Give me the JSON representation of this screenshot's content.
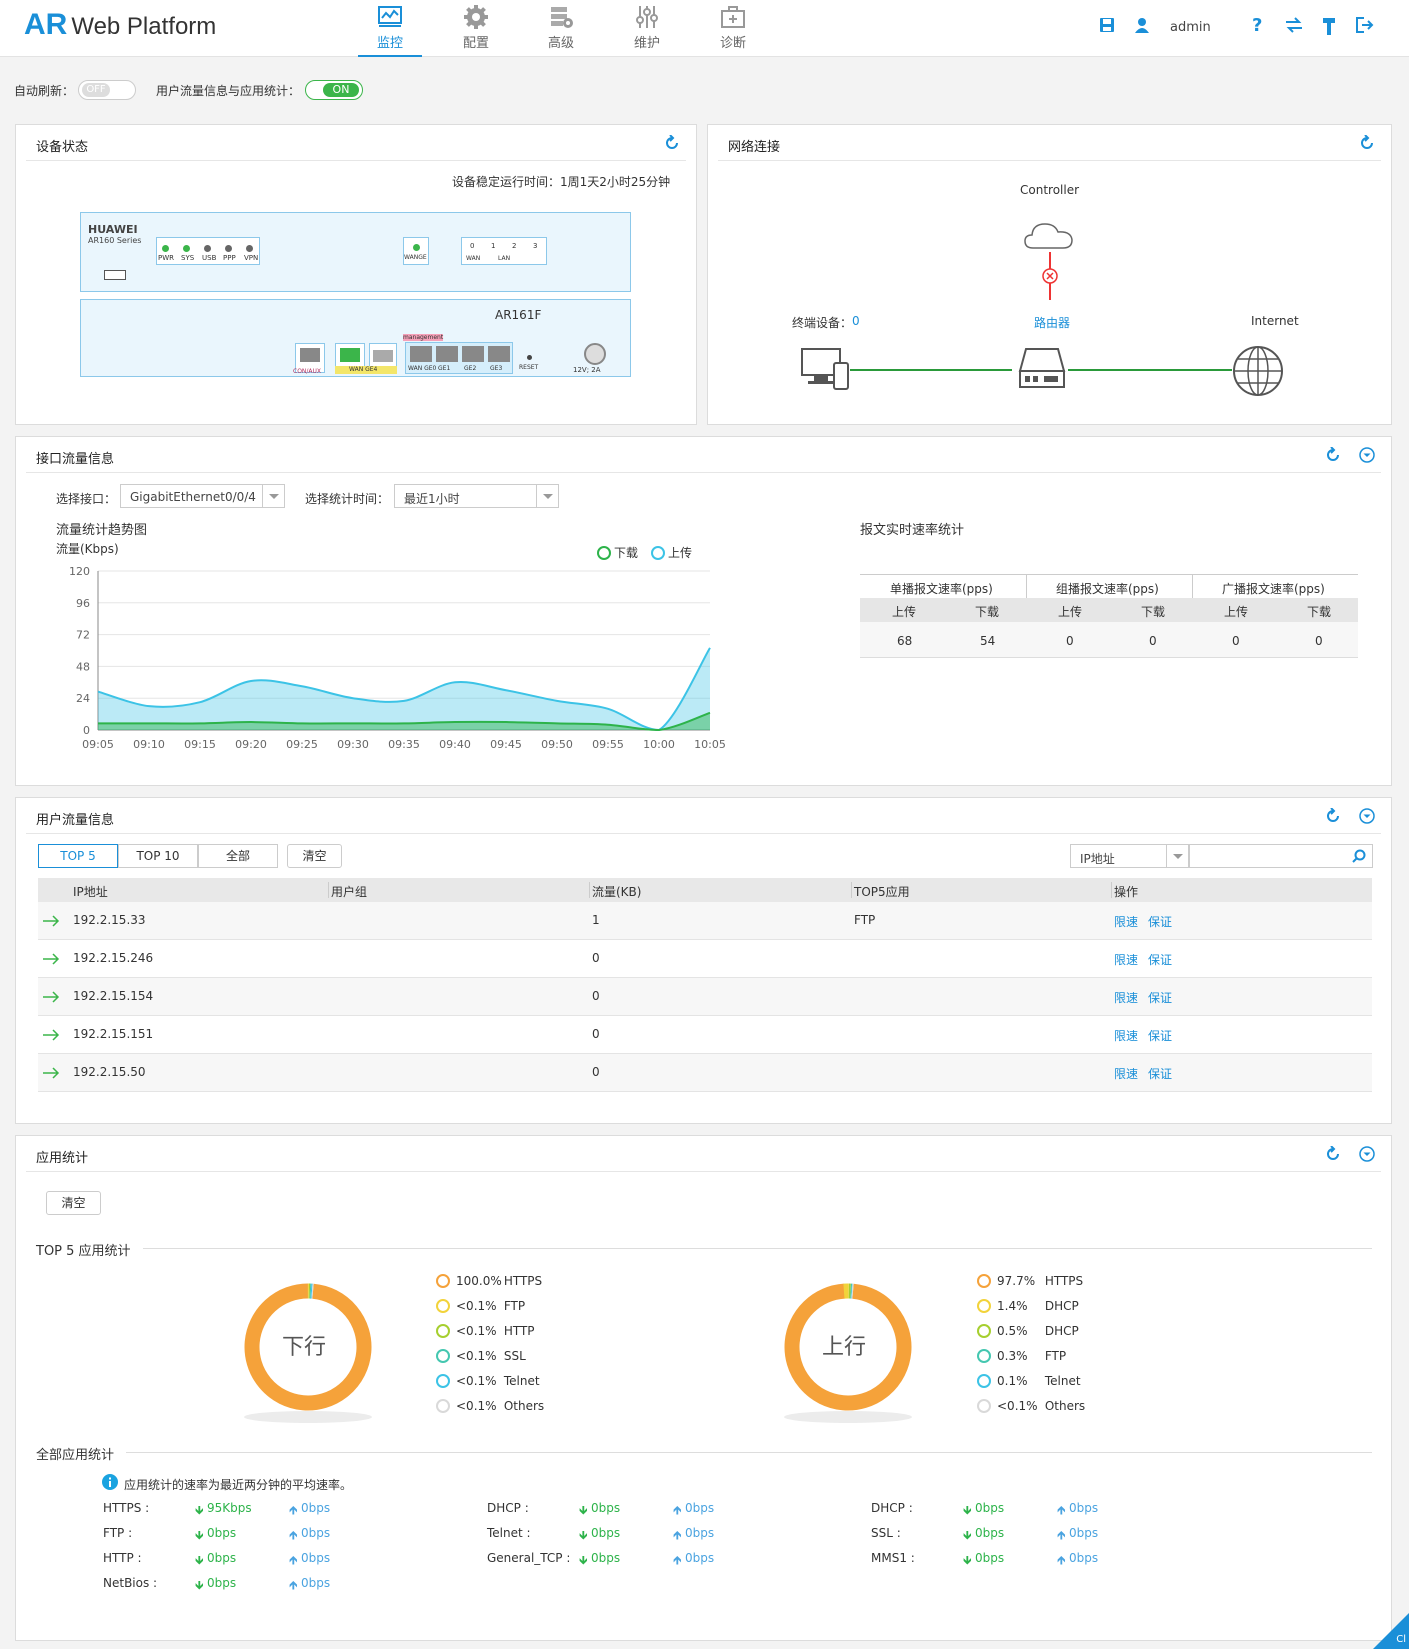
{
  "brand": {
    "ar": "AR",
    "rest": "Web Platform"
  },
  "nav": [
    {
      "label": "监控",
      "icon": "monitor-icon"
    },
    {
      "label": "配置",
      "icon": "gear-icon"
    },
    {
      "label": "高级",
      "icon": "advanced-icon"
    },
    {
      "label": "维护",
      "icon": "sliders-icon"
    },
    {
      "label": "诊断",
      "icon": "medkit-icon"
    }
  ],
  "user": "admin",
  "toolbar": {
    "save": "save-icon",
    "user": "user-icon",
    "help": "help-icon",
    "switch": "switch-icon",
    "tool": "hammer-icon",
    "logout": "logout-icon"
  },
  "refresh": {
    "label": "自动刷新：",
    "state": "OFF"
  },
  "stats_toggle": {
    "label": "用户流量信息与应用统计：",
    "state": "ON"
  },
  "device": {
    "title": "设备状态",
    "uptime": "设备稳定运行时间：1周1天2小时25分钟",
    "brand": "HUAWEI",
    "series": "AR160 Series",
    "leds": [
      "PWR",
      "SYS",
      "USB",
      "PPP",
      "VPN"
    ],
    "wange": "WANGE",
    "wan": "WAN",
    "lan": "LAN",
    "lan_nums": [
      "0",
      "1",
      "2",
      "3"
    ],
    "model": "AR161F",
    "management": "management",
    "ports": [
      "CON/AUX",
      "WAN GE4",
      "WAN GE0",
      "GE1",
      "GE2",
      "GE3"
    ],
    "reset": "RESET",
    "power": "12V; 2A"
  },
  "network": {
    "title": "网络连接",
    "controller": "Controller",
    "terminal_label": "终端设备：",
    "terminal_count": "0",
    "router": "路由器",
    "internet": "Internet"
  },
  "iface": {
    "title": "接口流量信息",
    "select_label": "选择接口：",
    "select_value": "GigabitEthernet0/0/4",
    "time_label": "选择统计时间：",
    "time_value": "最近1小时",
    "trend_title": "流量统计趋势图",
    "rate_title": "报文实时速率统计"
  },
  "chart_data": {
    "type": "area",
    "title": "流量统计趋势图",
    "ylabel": "流量(Kbps)",
    "x": [
      "09:05",
      "09:10",
      "09:15",
      "09:20",
      "09:25",
      "09:30",
      "09:35",
      "09:40",
      "09:45",
      "09:50",
      "09:55",
      "10:00",
      "10:05"
    ],
    "ylim": [
      0,
      120
    ],
    "yticks": [
      0,
      24,
      48,
      72,
      96,
      120
    ],
    "series": [
      {
        "name": "下载",
        "color": "#2db34a",
        "values": [
          5,
          5,
          5,
          6,
          5,
          5,
          5,
          6,
          6,
          5,
          4,
          0,
          13
        ]
      },
      {
        "name": "上传",
        "color": "#3cc3e6",
        "values": [
          29,
          18,
          21,
          37,
          33,
          24,
          22,
          36,
          30,
          22,
          16,
          0,
          62
        ]
      }
    ],
    "grid": true,
    "legend": "top-right"
  },
  "rate_table": {
    "groups": [
      "单播报文速率(pps)",
      "组播报文速率(pps)",
      "广播报文速率(pps)"
    ],
    "sub": [
      "上传",
      "下载",
      "上传",
      "下载",
      "上传",
      "下载"
    ],
    "values": [
      "68",
      "54",
      "0",
      "0",
      "0",
      "0"
    ]
  },
  "users": {
    "title": "用户流量信息",
    "tabs": [
      "TOP 5",
      "TOP 10",
      "全部"
    ],
    "clear": "清空",
    "search_type": "IP地址",
    "search_value": "",
    "columns": [
      "IP地址",
      "用户组",
      "流量(KB)",
      "TOP5应用",
      "操作"
    ],
    "rows": [
      {
        "ip": "192.2.15.33",
        "group": "",
        "flow": "1",
        "app": "FTP"
      },
      {
        "ip": "192.2.15.246",
        "group": "",
        "flow": "0",
        "app": ""
      },
      {
        "ip": "192.2.15.154",
        "group": "",
        "flow": "0",
        "app": ""
      },
      {
        "ip": "192.2.15.151",
        "group": "",
        "flow": "0",
        "app": ""
      },
      {
        "ip": "192.2.15.50",
        "group": "",
        "flow": "0",
        "app": ""
      }
    ],
    "limit": "限速",
    "guarantee": "保证"
  },
  "apps": {
    "title": "应用统计",
    "clear": "清空",
    "top5_title": "TOP 5 应用统计",
    "all_title": "全部应用统计",
    "note": "应用统计的速率为最近两分钟的平均速率。",
    "down_donut": {
      "label": "下行",
      "legend": [
        {
          "pct": "100.0%",
          "name": "HTTPS",
          "color": "#f5a23a"
        },
        {
          "pct": "<0.1%",
          "name": "FTP",
          "color": "#f2d33b"
        },
        {
          "pct": "<0.1%",
          "name": "HTTP",
          "color": "#a6cf2f"
        },
        {
          "pct": "<0.1%",
          "name": "SSL",
          "color": "#44c7b0"
        },
        {
          "pct": "<0.1%",
          "name": "Telnet",
          "color": "#3cc3e6"
        },
        {
          "pct": "<0.1%",
          "name": "Others",
          "color": "#d9d9d9"
        }
      ]
    },
    "up_donut": {
      "label": "上行",
      "legend": [
        {
          "pct": "97.7%",
          "name": "HTTPS",
          "color": "#f5a23a"
        },
        {
          "pct": "1.4%",
          "name": "DHCP",
          "color": "#f2d33b"
        },
        {
          "pct": "0.5%",
          "name": "DHCP",
          "color": "#a6cf2f"
        },
        {
          "pct": "0.3%",
          "name": "FTP",
          "color": "#44c7b0"
        },
        {
          "pct": "0.1%",
          "name": "Telnet",
          "color": "#3cc3e6"
        },
        {
          "pct": "<0.1%",
          "name": "Others",
          "color": "#d9d9d9"
        }
      ]
    },
    "list": [
      [
        {
          "name": "HTTPS :",
          "down": "95Kbps",
          "up": "0bps"
        },
        {
          "name": "FTP :",
          "down": "0bps",
          "up": "0bps"
        },
        {
          "name": "HTTP :",
          "down": "0bps",
          "up": "0bps"
        },
        {
          "name": "NetBios :",
          "down": "0bps",
          "up": "0bps"
        }
      ],
      [
        {
          "name": "DHCP :",
          "down": "0bps",
          "up": "0bps"
        },
        {
          "name": "Telnet :",
          "down": "0bps",
          "up": "0bps"
        },
        {
          "name": "General_TCP :",
          "down": "0bps",
          "up": "0bps"
        }
      ],
      [
        {
          "name": "DHCP :",
          "down": "0bps",
          "up": "0bps"
        },
        {
          "name": "SSL :",
          "down": "0bps",
          "up": "0bps"
        },
        {
          "name": "MMS1 :",
          "down": "0bps",
          "up": "0bps"
        }
      ]
    ]
  },
  "corner": "Cl"
}
